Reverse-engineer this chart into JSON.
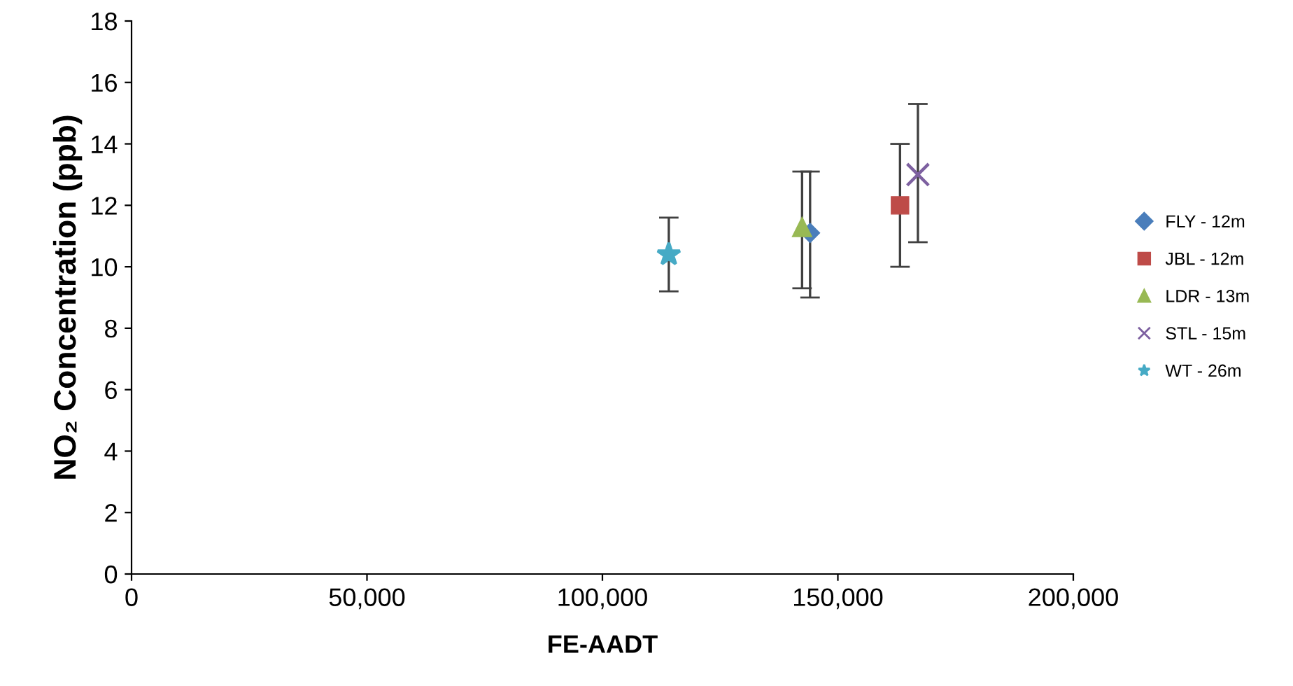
{
  "chart_data": {
    "type": "scatter",
    "xlabel": "FE-AADT",
    "ylabel": "NO₂ Concentration (ppb)",
    "xlim": [
      0,
      200000
    ],
    "xticks": [
      {
        "value": 0,
        "label": "0"
      },
      {
        "value": 50000,
        "label": "50,000"
      },
      {
        "value": 100000,
        "label": "100,000"
      },
      {
        "value": 150000,
        "label": "150,000"
      },
      {
        "value": 200000,
        "label": "200,000"
      }
    ],
    "ylim": [
      0,
      18
    ],
    "yticks": [
      0,
      2,
      4,
      6,
      8,
      10,
      12,
      14,
      16,
      18
    ],
    "grid": false,
    "legend": "right",
    "series": [
      {
        "name": "FLY - 12m",
        "color": "#4a7ebb",
        "marker": "diamond",
        "x": [
          144100
        ],
        "values": [
          11.1
        ],
        "errors": [
          [
            9.0,
            13.1
          ]
        ]
      },
      {
        "name": "JBL - 12m",
        "color": "#be4b48",
        "marker": "square",
        "x": [
          163200
        ],
        "values": [
          12.0
        ],
        "errors": [
          [
            10.0,
            14.0
          ]
        ]
      },
      {
        "name": "LDR - 13m",
        "color": "#98b954",
        "marker": "triangle",
        "x": [
          142400
        ],
        "values": [
          11.3
        ],
        "errors": [
          [
            9.3,
            13.1
          ]
        ]
      },
      {
        "name": "STL - 15m",
        "color": "#7d60a0",
        "marker": "cross",
        "x": [
          167000
        ],
        "values": [
          13.0
        ],
        "errors": [
          [
            10.8,
            15.3
          ]
        ]
      },
      {
        "name": "WT - 26m",
        "color": "#46aac5",
        "marker": "star",
        "x": [
          114100
        ],
        "values": [
          10.4
        ],
        "errors": [
          [
            9.2,
            11.6
          ]
        ]
      }
    ]
  }
}
